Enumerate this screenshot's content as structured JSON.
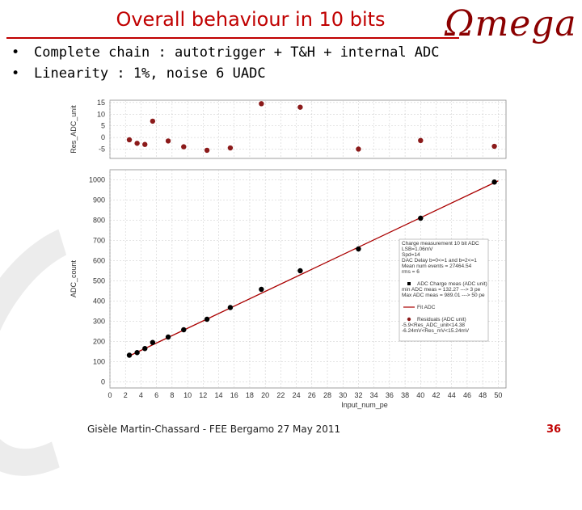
{
  "slide": {
    "title": "Overall behaviour in 10 bits",
    "logo": "Ωmega",
    "bullets": [
      "Complete chain : autotrigger + T&H + internal ADC",
      "Linearity : 1%, noise 6 UADC"
    ],
    "footer": "Gisèle Martin-Chassard - FEE  Bergamo 27 May 2011",
    "page_number": "36"
  },
  "chart_data": [
    {
      "type": "line",
      "role": "main",
      "xlabel": "Input_num_pe",
      "ylabel": "ADC_count",
      "xlim": [
        0,
        51
      ],
      "ylim": [
        -30,
        1050
      ],
      "x_ticks": [
        0,
        2,
        4,
        6,
        8,
        10,
        12,
        14,
        16,
        18,
        20,
        22,
        24,
        26,
        28,
        30,
        32,
        34,
        36,
        38,
        40,
        42,
        44,
        46,
        48,
        50
      ],
      "y_ticks": [
        0,
        100,
        200,
        300,
        400,
        500,
        600,
        700,
        800,
        900,
        1000
      ],
      "grid": true,
      "series": [
        {
          "name": "ADC Charge meas (ADC unit)",
          "kind": "scatter",
          "color": "#000000",
          "x": [
            2.5,
            3.5,
            4.5,
            5.5,
            7.5,
            9.5,
            12.5,
            15.5,
            19.5,
            24.5,
            32,
            40,
            49.5
          ],
          "y": [
            132,
            145,
            165,
            195,
            222,
            258,
            310,
            368,
            458,
            550,
            658,
            810,
            989
          ]
        },
        {
          "name": "Fit ADC",
          "kind": "line",
          "color": "#aa0000",
          "x": [
            2.3,
            50
          ],
          "y": [
            125,
            995
          ]
        }
      ],
      "legend": {
        "placement": "right",
        "lines": [
          "Charge measurement 10 bit ADC",
          "LSB=1.06mV",
          "Spd=14",
          "DAC Delay b=0<=1 and b=2<=1",
          "Mean num events = 27464.54",
          "rms = 6",
          "ADC Charge meas (ADC unit)",
          "min ADC meas = 132.27 ---> 3 pe",
          "Max ADC meas = 989.01 ---> 50 pe",
          "Fit ADC",
          "Residuals (ADC unit)",
          "-5.9<Res_ADC_unit<14.38",
          "-6.24mV<Res_mV<15.24mV"
        ]
      }
    },
    {
      "type": "scatter",
      "role": "residuals",
      "xlabel": "",
      "ylabel": "Res_ADC_unit",
      "ylim": [
        -9,
        16
      ],
      "y_ticks": [
        -5,
        0,
        5,
        10,
        15
      ],
      "series": [
        {
          "name": "Residuals (ADC unit)",
          "color": "#8b1a1a",
          "x": [
            2.5,
            3.5,
            4.5,
            5.5,
            7.5,
            9.5,
            12.5,
            15.5,
            19.5,
            24.5,
            32,
            40,
            49.5
          ],
          "y": [
            -1,
            -2.5,
            -3,
            7,
            -1.5,
            -4,
            -5.5,
            -4.5,
            14.5,
            13,
            -5,
            -1.3,
            -3.8
          ]
        }
      ]
    }
  ]
}
